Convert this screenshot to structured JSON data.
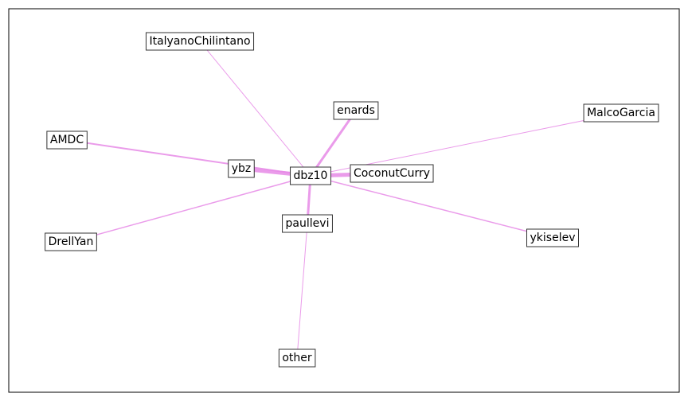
{
  "graph": {
    "edge_color": "#e68ae6",
    "nodes": [
      {
        "id": "dbz10",
        "label": "dbz10"
      },
      {
        "id": "ItalyanoChilintano",
        "label": "ItalyanoChilintano"
      },
      {
        "id": "enards",
        "label": "enards"
      },
      {
        "id": "MalcoGarcia",
        "label": "MalcoGarcia"
      },
      {
        "id": "AMDC",
        "label": "AMDC"
      },
      {
        "id": "ybz",
        "label": "ybz"
      },
      {
        "id": "CoconutCurry",
        "label": "CoconutCurry"
      },
      {
        "id": "paullevi",
        "label": "paullevi"
      },
      {
        "id": "DrellYan",
        "label": "DrellYan"
      },
      {
        "id": "ykiselev",
        "label": "ykiselev"
      },
      {
        "id": "other",
        "label": "other"
      }
    ],
    "edges": [
      {
        "source": "dbz10",
        "target": "ItalyanoChilintano",
        "weight": 1
      },
      {
        "source": "dbz10",
        "target": "enards",
        "weight": 3
      },
      {
        "source": "dbz10",
        "target": "MalcoGarcia",
        "weight": 1
      },
      {
        "source": "dbz10",
        "target": "AMDC",
        "weight": 2
      },
      {
        "source": "dbz10",
        "target": "ybz",
        "weight": 5
      },
      {
        "source": "dbz10",
        "target": "CoconutCurry",
        "weight": 5
      },
      {
        "source": "dbz10",
        "target": "paullevi",
        "weight": 3
      },
      {
        "source": "dbz10",
        "target": "DrellYan",
        "weight": 1.5
      },
      {
        "source": "dbz10",
        "target": "ykiselev",
        "weight": 1.5
      },
      {
        "source": "paullevi",
        "target": "other",
        "weight": 1
      }
    ]
  }
}
